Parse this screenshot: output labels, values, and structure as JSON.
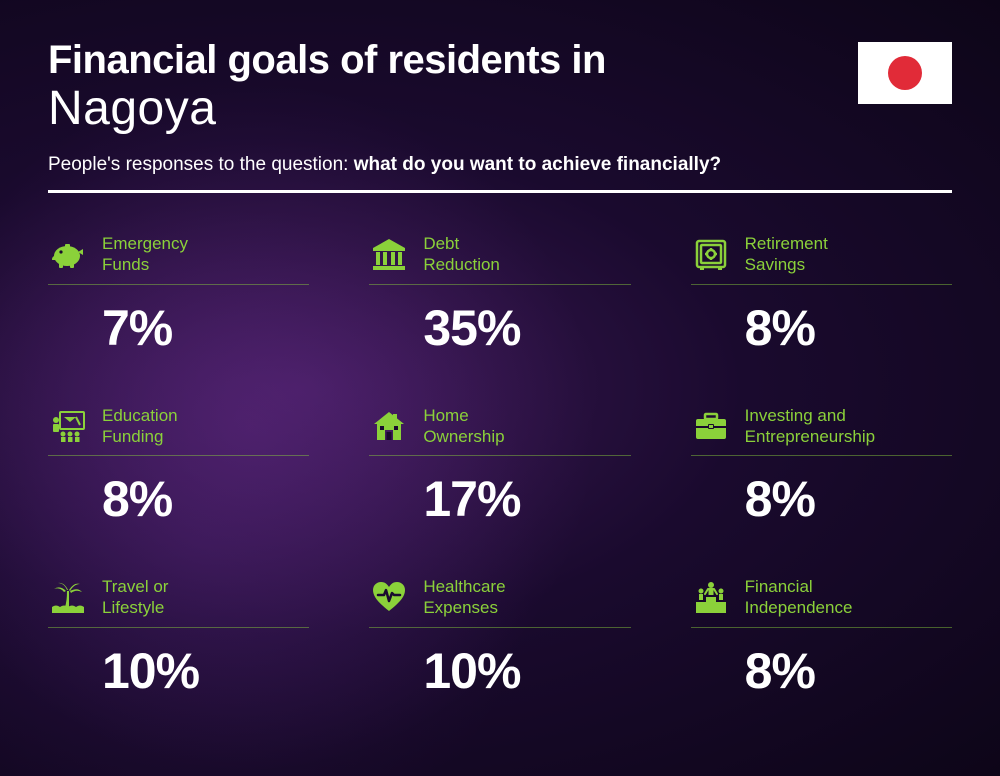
{
  "header": {
    "title_prefix": "Financial goals of residents in",
    "city": "Nagoya",
    "subtitle_lead": "People's responses to the question: ",
    "subtitle_bold": "what do you want to achieve financially?"
  },
  "flag": {
    "country": "Japan",
    "bg_color": "#ffffff",
    "circle_color": "#e12b38"
  },
  "styling": {
    "accent_color": "#8bd13a",
    "text_color": "#ffffff",
    "background_gradient": [
      "#3a1854",
      "#1a0a2e",
      "#0d0518"
    ],
    "title_fontsize": 40,
    "city_fontsize": 48,
    "subtitle_fontsize": 19,
    "percent_fontsize": 50,
    "label_fontsize": 17,
    "grid_columns": 3,
    "column_gap": 60,
    "row_gap": 48
  },
  "items": [
    {
      "icon": "piggy-bank",
      "label": "Emergency\nFunds",
      "percent": "7%"
    },
    {
      "icon": "bank",
      "label": "Debt\nReduction",
      "percent": "35%"
    },
    {
      "icon": "safe",
      "label": "Retirement\nSavings",
      "percent": "8%"
    },
    {
      "icon": "education",
      "label": "Education\nFunding",
      "percent": "8%"
    },
    {
      "icon": "house",
      "label": "Home\nOwnership",
      "percent": "17%"
    },
    {
      "icon": "briefcase",
      "label": "Investing and\nEntrepreneurship",
      "percent": "8%"
    },
    {
      "icon": "palm-tree",
      "label": "Travel or\nLifestyle",
      "percent": "10%"
    },
    {
      "icon": "heart-pulse",
      "label": "Healthcare\nExpenses",
      "percent": "10%"
    },
    {
      "icon": "podium",
      "label": "Financial\nIndependence",
      "percent": "8%"
    }
  ]
}
